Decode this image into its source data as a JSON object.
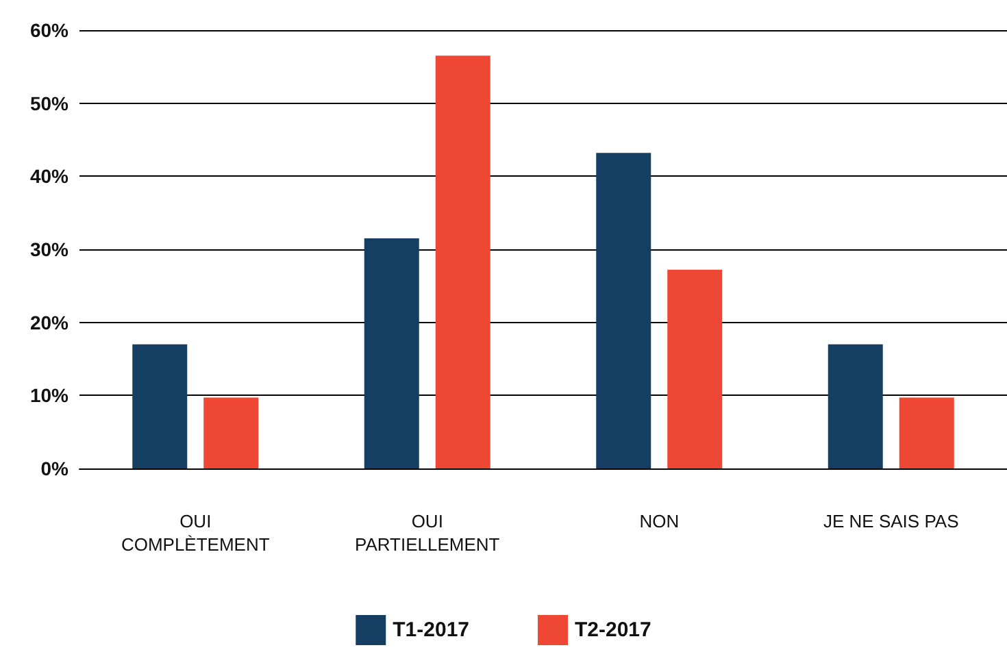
{
  "chart_data": {
    "type": "bar",
    "categories": [
      "OUI\nCOMPLÈTEMENT",
      "OUI\nPARTIELLEMENT",
      "NON",
      "JE NE SAIS PAS"
    ],
    "series": [
      {
        "name": "T1-2017",
        "color": "#143f63",
        "values": [
          17,
          31.5,
          43.2,
          17
        ]
      },
      {
        "name": "T2-2017",
        "color": "#ee4733",
        "values": [
          9.7,
          56.5,
          27.2,
          9.7
        ]
      }
    ],
    "ylim": [
      0,
      60
    ],
    "yticks": [
      {
        "value": 0,
        "label": "0%"
      },
      {
        "value": 10,
        "label": "10%"
      },
      {
        "value": 20,
        "label": "20%"
      },
      {
        "value": 30,
        "label": "30%"
      },
      {
        "value": 40,
        "label": "40%"
      },
      {
        "value": 50,
        "label": "50%"
      },
      {
        "value": 60,
        "label": "60%"
      }
    ],
    "grid": "y",
    "legend": "bottom"
  }
}
